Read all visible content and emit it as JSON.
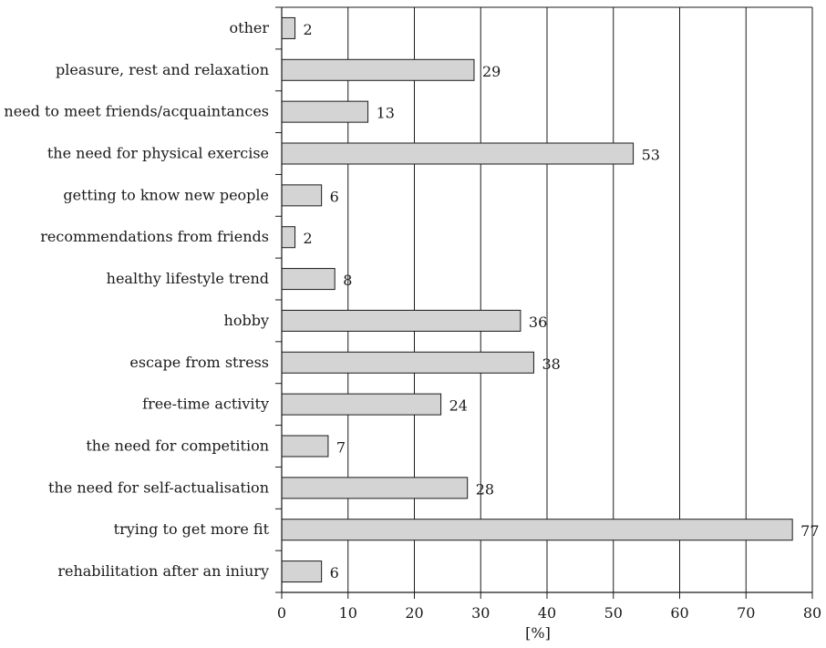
{
  "chart_data": {
    "type": "bar",
    "orientation": "horizontal",
    "categories": [
      "other",
      "pleasure, rest and relaxation",
      "need to meet friends/acquaintances",
      "the need for physical exercise",
      "getting to know new people",
      "recommendations from friends",
      "healthy lifestyle trend",
      "hobby",
      "escape from stress",
      "free-time activity",
      "the need for competition",
      "the need for self-actualisation",
      "trying to get more fit",
      "rehabilitation after an iniury"
    ],
    "values": [
      2,
      29,
      13,
      53,
      6,
      2,
      8,
      36,
      38,
      24,
      7,
      28,
      77,
      6
    ],
    "data_labels": [
      "2",
      "29",
      "13",
      "53",
      "6",
      "2",
      "8",
      "36",
      "38",
      "24",
      "7",
      "28",
      "77",
      "6"
    ],
    "xlabel": "[%]",
    "ylabel": "",
    "xlim": [
      0,
      80
    ],
    "x_ticks": [
      0,
      10,
      20,
      30,
      40,
      50,
      60,
      70,
      80
    ],
    "x_tick_labels": [
      "0",
      "10",
      "20",
      "30",
      "40",
      "50",
      "60",
      "70",
      "80"
    ],
    "grid": "vertical",
    "legend": "none",
    "colors": {
      "bar_fill": "#d4d4d4",
      "bar_stroke": "#1a1a1a",
      "axis": "#1a1a1a",
      "grid": "#1a1a1a"
    }
  }
}
